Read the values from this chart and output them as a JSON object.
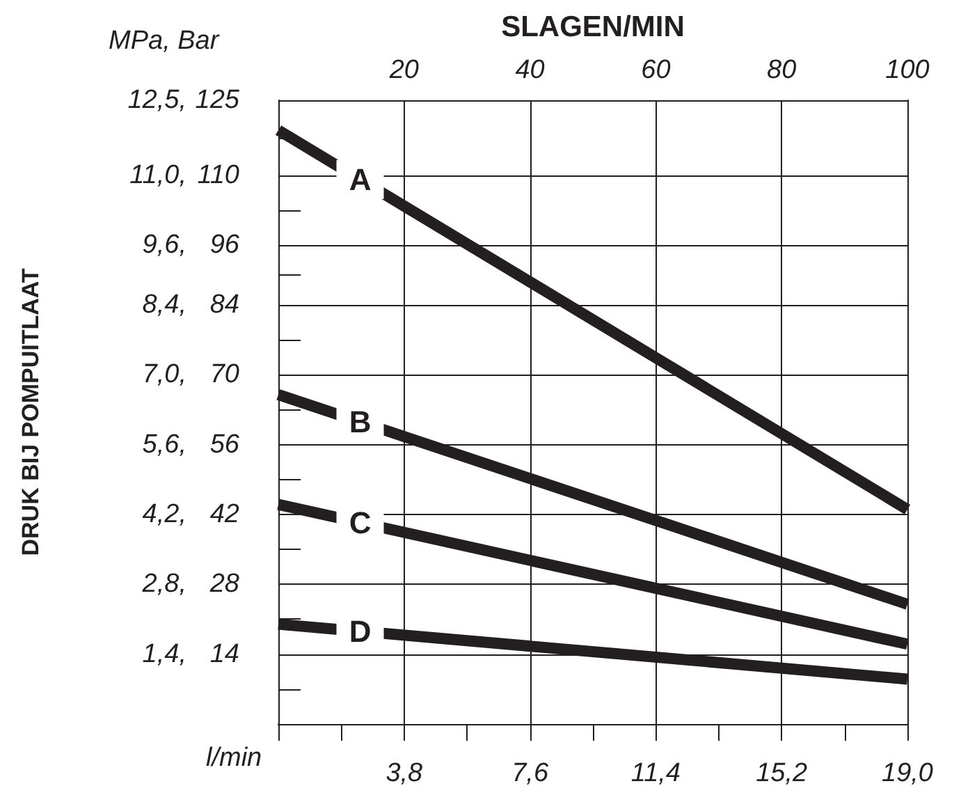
{
  "chart_data": {
    "type": "line",
    "xlabel": "l/min",
    "ylabel": "DRUK BIJ POMPUITLAAT",
    "x2label": "SLAGEN/MIN",
    "annotations": [
      "MPa, Bar"
    ],
    "x": [
      0,
      19
    ],
    "series": [
      {
        "name": "A",
        "color": "#231f20",
        "values": [
          11.9,
          4.3
        ]
      },
      {
        "name": "B",
        "color": "#231f20",
        "values": [
          6.6,
          2.4
        ]
      },
      {
        "name": "C",
        "color": "#231f20",
        "values": [
          4.4,
          1.6
        ]
      },
      {
        "name": "D",
        "color": "#231f20",
        "values": [
          2.0,
          0.9
        ]
      }
    ],
    "xlim": [
      0,
      19
    ],
    "xticks": [
      {
        "value": 0,
        "label": null
      },
      {
        "value": 1.9,
        "label": null
      },
      {
        "value": 3.8,
        "label": "3,8"
      },
      {
        "value": 5.7,
        "label": null
      },
      {
        "value": 7.6,
        "label": "7,6"
      },
      {
        "value": 9.5,
        "label": null
      },
      {
        "value": 11.4,
        "label": "11,4"
      },
      {
        "value": 13.3,
        "label": null
      },
      {
        "value": 15.2,
        "label": "15,2"
      },
      {
        "value": 17.1,
        "label": null
      },
      {
        "value": 19,
        "label": "19,0"
      }
    ],
    "x2lim": [
      0,
      100
    ],
    "x2ticks": [
      20,
      40,
      60,
      80,
      100
    ],
    "ylim": [
      0,
      12.5
    ],
    "yticks": [
      {
        "value": 0,
        "label": null
      },
      {
        "value": 0.7,
        "label": null
      },
      {
        "value": 1.4,
        "label": "1,4,"
      },
      {
        "value": 2.1,
        "label": null
      },
      {
        "value": 2.8,
        "label": "2,8,"
      },
      {
        "value": 3.5,
        "label": null
      },
      {
        "value": 4.2,
        "label": "4,2,"
      },
      {
        "value": 4.9,
        "label": null
      },
      {
        "value": 5.6,
        "label": "5,6,"
      },
      {
        "value": 6.3,
        "label": null
      },
      {
        "value": 7,
        "label": "7,0,"
      },
      {
        "value": 7.7,
        "label": null
      },
      {
        "value": 8.4,
        "label": "8,4,"
      },
      {
        "value": 9,
        "label": null
      },
      {
        "value": 9.6,
        "label": "9,6,"
      },
      {
        "value": 10.3,
        "label": null
      },
      {
        "value": 11,
        "label": "11,0,"
      },
      {
        "value": 11.75,
        "label": null
      },
      {
        "value": 12.5,
        "label": "12,5,"
      }
    ],
    "y2lim": [
      0,
      125
    ],
    "y2ticks": [
      14,
      28,
      42,
      56,
      70,
      84,
      96,
      110,
      125
    ],
    "legend": "left",
    "grid": true,
    "marker": "none",
    "line_style": "solid"
  }
}
